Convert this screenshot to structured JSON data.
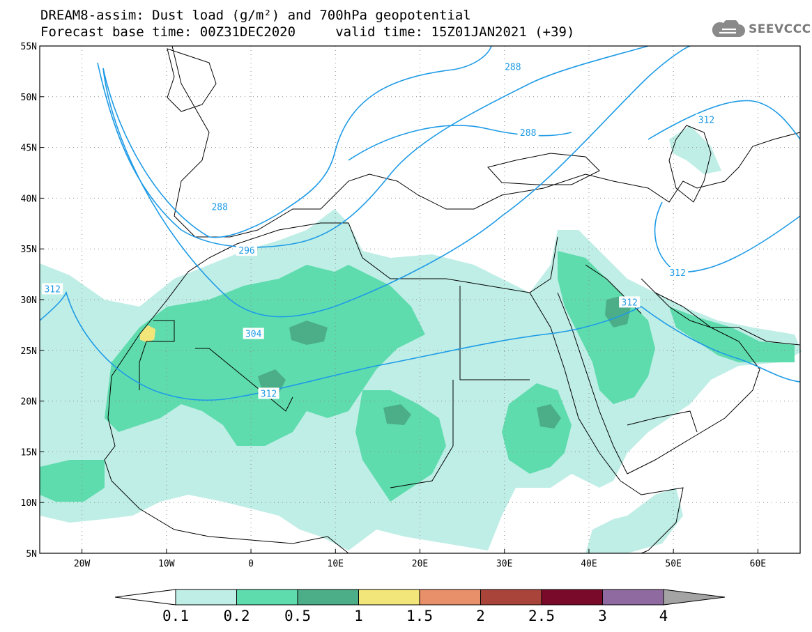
{
  "header": {
    "title_line1": "DREAM8-assim: Dust load (g/m²) and 700hPa geopotential",
    "title_line2": "Forecast base time: 00Z31DEC2020     valid time: 15Z01JAN2021 (+39)"
  },
  "logo": {
    "text": "SEEVCCC",
    "icon": "cloud-icon",
    "color": "#7a7a7a"
  },
  "map": {
    "lon_range": [
      -25,
      65
    ],
    "lat_range": [
      5,
      55
    ],
    "lon_ticks": [
      {
        "value": -20,
        "label": "20W"
      },
      {
        "value": -10,
        "label": "10W"
      },
      {
        "value": 0,
        "label": "0"
      },
      {
        "value": 10,
        "label": "10E"
      },
      {
        "value": 20,
        "label": "20E"
      },
      {
        "value": 30,
        "label": "30E"
      },
      {
        "value": 40,
        "label": "40E"
      },
      {
        "value": 50,
        "label": "50E"
      },
      {
        "value": 60,
        "label": "60E"
      }
    ],
    "lat_ticks": [
      {
        "value": 55,
        "label": "55N"
      },
      {
        "value": 50,
        "label": "50N"
      },
      {
        "value": 45,
        "label": "45N"
      },
      {
        "value": 40,
        "label": "40N"
      },
      {
        "value": 35,
        "label": "35N"
      },
      {
        "value": 30,
        "label": "30N"
      },
      {
        "value": 25,
        "label": "25N"
      },
      {
        "value": 20,
        "label": "20N"
      },
      {
        "value": 15,
        "label": "15N"
      },
      {
        "value": 10,
        "label": "10N"
      },
      {
        "value": 5,
        "label": "5N"
      }
    ],
    "contour_color": "#1e9be6",
    "contour_labels": [
      {
        "text": "288",
        "lon": 31,
        "lat": 52.9
      },
      {
        "text": "288",
        "lon": 32.8,
        "lat": 46.4
      },
      {
        "text": "288",
        "lon": -3.7,
        "lat": 39.1
      },
      {
        "text": "296",
        "lon": -0.5,
        "lat": 34.8
      },
      {
        "text": "304",
        "lon": 0.3,
        "lat": 26.6
      },
      {
        "text": "312",
        "lon": 2.1,
        "lat": 20.7
      },
      {
        "text": "312",
        "lon": -23.5,
        "lat": 31.0
      },
      {
        "text": "312",
        "lon": 44.8,
        "lat": 29.7
      },
      {
        "text": "312",
        "lon": 50.5,
        "lat": 32.6
      },
      {
        "text": "312",
        "lon": 53.9,
        "lat": 47.7
      }
    ]
  },
  "colorbar": {
    "labels": [
      "0.1",
      "0.2",
      "0.5",
      "1",
      "1.5",
      "2",
      "2.5",
      "3",
      "4"
    ],
    "colors": [
      "#bfeee6",
      "#5fdcae",
      "#4cad89",
      "#f2e67a",
      "#e8906a",
      "#a8443a",
      "#7a0a2a",
      "#8f6aa0"
    ],
    "under_color": "#ffffff",
    "over_color": "#a4a4a4"
  }
}
